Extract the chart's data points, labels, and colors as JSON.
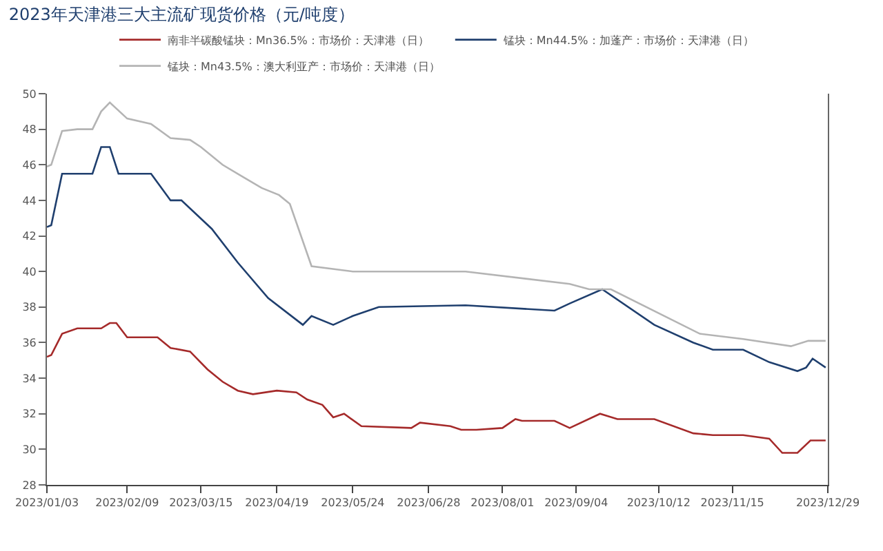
{
  "chart_data": {
    "type": "line",
    "title": "2023年天津港三大主流矿现货价格（元/吨度）",
    "ylim": [
      28,
      50
    ],
    "yticks": [
      28,
      30,
      32,
      34,
      36,
      38,
      40,
      42,
      44,
      46,
      48,
      50
    ],
    "xlim": [
      "2023-01-03",
      "2023-12-29"
    ],
    "xticks": [
      {
        "value": "2023-01-03",
        "label": "2023/01/03"
      },
      {
        "value": "2023-02-09",
        "label": "2023/02/09"
      },
      {
        "value": "2023-03-15",
        "label": "2023/03/15"
      },
      {
        "value": "2023-04-19",
        "label": "2023/04/19"
      },
      {
        "value": "2023-05-24",
        "label": "2023/05/24"
      },
      {
        "value": "2023-06-28",
        "label": "2023/06/28"
      },
      {
        "value": "2023-08-01",
        "label": "2023/08/01"
      },
      {
        "value": "2023-09-04",
        "label": "2023/09/04"
      },
      {
        "value": "2023-10-12",
        "label": "2023/10/12"
      },
      {
        "value": "2023-11-15",
        "label": "2023/11/15"
      },
      {
        "value": "2023-12-29",
        "label": "2023/12/29"
      }
    ],
    "legend": "top",
    "marker": "none",
    "line_style": "solid",
    "series": [
      {
        "name": "南非半碳酸锰块：Mn36.5%：市场价：天津港（日）",
        "color": "#a52a2a",
        "x": [
          "2023-01-03",
          "2023-01-05",
          "2023-01-10",
          "2023-01-17",
          "2023-01-28",
          "2023-02-01",
          "2023-02-04",
          "2023-02-09",
          "2023-02-23",
          "2023-03-01",
          "2023-03-10",
          "2023-03-18",
          "2023-03-25",
          "2023-04-01",
          "2023-04-08",
          "2023-04-19",
          "2023-04-28",
          "2023-05-03",
          "2023-05-10",
          "2023-05-15",
          "2023-05-20",
          "2023-05-28",
          "2023-06-20",
          "2023-06-24",
          "2023-07-08",
          "2023-07-13",
          "2023-07-20",
          "2023-08-01",
          "2023-08-07",
          "2023-08-10",
          "2023-08-25",
          "2023-09-01",
          "2023-09-15",
          "2023-09-23",
          "2023-10-10",
          "2023-10-28",
          "2023-11-06",
          "2023-11-20",
          "2023-12-02",
          "2023-12-08",
          "2023-12-15",
          "2023-12-21",
          "2023-12-28"
        ],
        "values": [
          35.2,
          35.3,
          36.5,
          36.8,
          36.8,
          37.1,
          37.1,
          36.3,
          36.3,
          35.7,
          35.5,
          34.5,
          33.8,
          33.3,
          33.1,
          33.3,
          33.2,
          32.8,
          32.5,
          31.8,
          32.0,
          31.3,
          31.2,
          31.5,
          31.3,
          31.1,
          31.1,
          31.2,
          31.7,
          31.6,
          31.6,
          31.2,
          32.0,
          31.7,
          31.7,
          30.9,
          30.8,
          30.8,
          30.6,
          29.8,
          29.8,
          30.5,
          30.5
        ]
      },
      {
        "name": "锰块：Mn44.5%：加蓬产：市场价：天津港（日）",
        "color": "#1f3f6e",
        "x": [
          "2023-01-03",
          "2023-01-05",
          "2023-01-10",
          "2023-01-24",
          "2023-01-28",
          "2023-02-01",
          "2023-02-05",
          "2023-02-20",
          "2023-03-01",
          "2023-03-06",
          "2023-03-20",
          "2023-04-01",
          "2023-04-15",
          "2023-05-01",
          "2023-05-05",
          "2023-05-15",
          "2023-05-24",
          "2023-06-05",
          "2023-07-15",
          "2023-08-25",
          "2023-09-01",
          "2023-09-16",
          "2023-10-10",
          "2023-10-28",
          "2023-11-06",
          "2023-11-20",
          "2023-12-02",
          "2023-12-15",
          "2023-12-19",
          "2023-12-22",
          "2023-12-28"
        ],
        "values": [
          42.5,
          42.6,
          45.5,
          45.5,
          47.0,
          47.0,
          45.5,
          45.5,
          44.0,
          44.0,
          42.4,
          40.5,
          38.5,
          37.0,
          37.5,
          37.0,
          37.5,
          38.0,
          38.1,
          37.8,
          38.2,
          39.0,
          37.0,
          36.0,
          35.6,
          35.6,
          34.9,
          34.4,
          34.6,
          35.1,
          34.6
        ]
      },
      {
        "name": "锰块：Mn43.5%：澳大利亚产：市场价：天津港（日）",
        "color": "#b4b4b4",
        "x": [
          "2023-01-03",
          "2023-01-05",
          "2023-01-10",
          "2023-01-17",
          "2023-01-24",
          "2023-01-28",
          "2023-02-01",
          "2023-02-09",
          "2023-02-20",
          "2023-03-01",
          "2023-03-10",
          "2023-03-15",
          "2023-03-25",
          "2023-04-05",
          "2023-04-12",
          "2023-04-20",
          "2023-04-25",
          "2023-05-05",
          "2023-05-24",
          "2023-07-15",
          "2023-09-01",
          "2023-09-10",
          "2023-09-20",
          "2023-10-31",
          "2023-11-20",
          "2023-12-12",
          "2023-12-20",
          "2023-12-28"
        ],
        "values": [
          45.9,
          46.0,
          47.9,
          48.0,
          48.0,
          49.0,
          49.5,
          48.6,
          48.3,
          47.5,
          47.4,
          47.0,
          46.0,
          45.2,
          44.7,
          44.3,
          43.8,
          40.3,
          40.0,
          40.0,
          39.3,
          39.0,
          39.0,
          36.5,
          36.2,
          35.8,
          36.1,
          36.1
        ]
      }
    ]
  }
}
